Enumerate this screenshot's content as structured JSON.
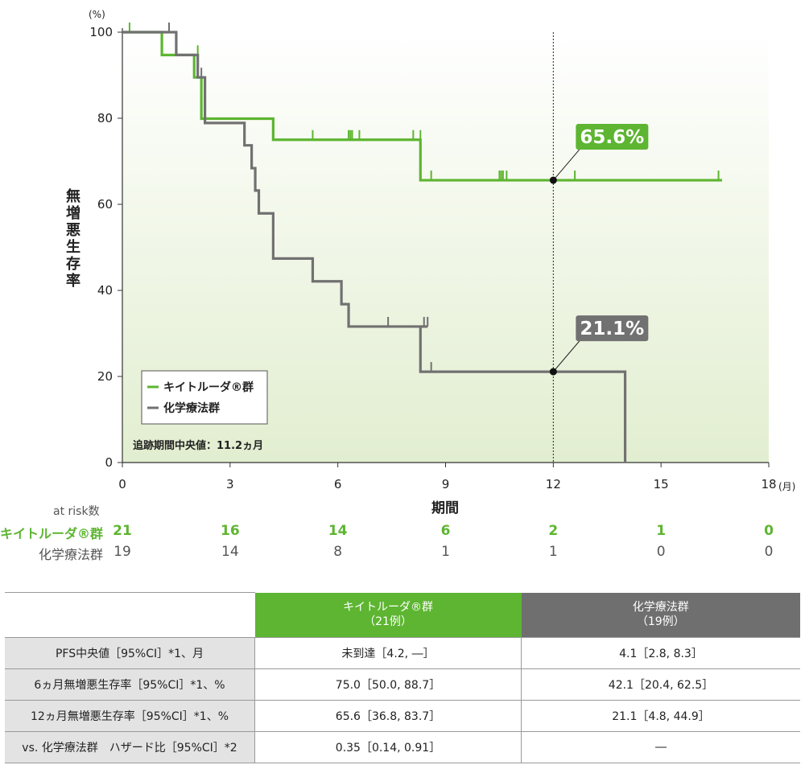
{
  "chart_data": {
    "type": "line",
    "step": true,
    "xlabel": "期間",
    "x_unit": "(月)",
    "ylabel": "無増悪生存率",
    "y_unit": "(%)",
    "xlim": [
      0,
      18
    ],
    "ylim": [
      0,
      100
    ],
    "x_ticks": [
      "0",
      "3",
      "6",
      "9",
      "12",
      "15",
      "18"
    ],
    "y_ticks": [
      "0",
      "20",
      "40",
      "60",
      "80",
      "100"
    ],
    "reference_x": 12,
    "legend_position": "bottom-left",
    "background": "gradient green",
    "footnote": "追跡期間中央値：11.2ヵ月",
    "series": [
      {
        "name": "キイトルーダ®群",
        "color": "#5db531",
        "steps": [
          [
            0,
            100
          ],
          [
            1.1,
            94.7
          ],
          [
            2.0,
            89.5
          ],
          [
            2.2,
            84.2
          ],
          [
            2.2,
            79.9
          ],
          [
            4.2,
            75.0
          ],
          [
            8.3,
            65.6
          ],
          [
            16.7,
            65.6
          ]
        ],
        "censored": [
          [
            0.2,
            100
          ],
          [
            2.1,
            94.7
          ],
          [
            5.3,
            75.0
          ],
          [
            6.3,
            75.0
          ],
          [
            6.35,
            75.0
          ],
          [
            6.4,
            75.0
          ],
          [
            6.6,
            75.0
          ],
          [
            8.1,
            75.0
          ],
          [
            8.3,
            75.0
          ],
          [
            8.6,
            65.6
          ],
          [
            10.5,
            65.6
          ],
          [
            10.55,
            65.6
          ],
          [
            10.6,
            65.6
          ],
          [
            10.7,
            65.6
          ],
          [
            12.6,
            65.6
          ],
          [
            16.6,
            65.6
          ]
        ],
        "label_value": "65.6%"
      },
      {
        "name": "化学療法群",
        "color": "#717171",
        "steps": [
          [
            0,
            100
          ],
          [
            1.5,
            94.7
          ],
          [
            2.1,
            89.5
          ],
          [
            2.3,
            84.2
          ],
          [
            2.3,
            78.9
          ],
          [
            3.4,
            73.7
          ],
          [
            3.6,
            68.4
          ],
          [
            3.7,
            63.2
          ],
          [
            3.8,
            57.9
          ],
          [
            4.2,
            47.4
          ],
          [
            5.3,
            42.1
          ],
          [
            6.1,
            36.8
          ],
          [
            6.3,
            31.6
          ],
          [
            8.3,
            21.1
          ],
          [
            14.0,
            21.1
          ],
          [
            14.0,
            0
          ]
        ],
        "extra_line": [
          [
            8.3,
            31.6
          ],
          [
            8.5,
            31.6
          ]
        ],
        "censored": [
          [
            1.3,
            100
          ],
          [
            2.2,
            89.5
          ],
          [
            7.4,
            31.6
          ],
          [
            8.4,
            31.6
          ],
          [
            8.5,
            31.6
          ],
          [
            8.6,
            21.1
          ]
        ],
        "label_value": "21.1%"
      }
    ]
  },
  "risk": {
    "title": "at risk数",
    "rows": [
      {
        "label": "キイトルーダ®群",
        "values": [
          "21",
          "16",
          "14",
          "6",
          "2",
          "1",
          "0"
        ]
      },
      {
        "label": "化学療法群",
        "values": [
          "19",
          "14",
          "8",
          "1",
          "1",
          "0",
          "0"
        ]
      }
    ]
  },
  "table": {
    "header": {
      "col1_line1": "キイトルーダ®群",
      "col1_line2": "（21例）",
      "col2_line1": "化学療法群",
      "col2_line2": "（19例）"
    },
    "rows": [
      {
        "label": "PFS中央値［95%CI］*1、月",
        "v1": "未到達［4.2, ―］",
        "v2": "4.1［2.8, 8.3］"
      },
      {
        "label": "6ヵ月無増悪生存率［95%CI］*1、%",
        "v1": "75.0［50.0, 88.7］",
        "v2": "42.1［20.4, 62.5］"
      },
      {
        "label": "12ヵ月無増悪生存率［95%CI］*1、%",
        "v1": "65.6［36.8, 83.7］",
        "v2": "21.1［4.8, 44.9］"
      },
      {
        "label": "vs. 化学療法群　ハザード比［95%CI］*2",
        "v1": "0.35［0.14, 0.91］",
        "v2": "―"
      }
    ]
  }
}
